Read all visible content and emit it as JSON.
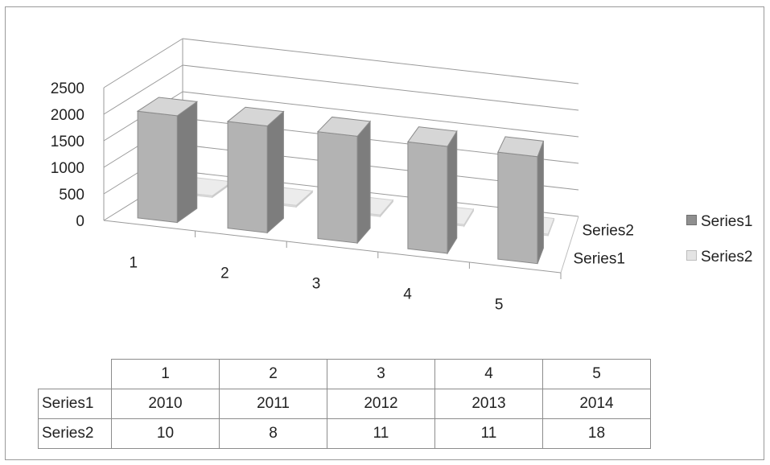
{
  "chart_data": {
    "type": "bar",
    "title": "",
    "categories": [
      "1",
      "2",
      "3",
      "4",
      "5"
    ],
    "series": [
      {
        "name": "Series1",
        "values": [
          2010,
          2011,
          2012,
          2013,
          2014
        ],
        "color": "#b0b0b0"
      },
      {
        "name": "Series2",
        "values": [
          10,
          8,
          11,
          11,
          18
        ],
        "color": "#dcdcdc"
      }
    ],
    "y_ticks": [
      "0",
      "500",
      "1000",
      "1500",
      "2000",
      "2500"
    ],
    "ylim": [
      0,
      2500
    ],
    "depth_axis_labels": [
      "Series1",
      "Series2"
    ],
    "grid": true,
    "legend_position": "right",
    "three_d": true
  },
  "table": {
    "header": [
      "",
      "1",
      "2",
      "3",
      "4",
      "5"
    ],
    "rows": [
      {
        "label": "Series1",
        "values": [
          "2010",
          "2011",
          "2012",
          "2013",
          "2014"
        ]
      },
      {
        "label": "Series2",
        "values": [
          "10",
          "8",
          "11",
          "11",
          "18"
        ]
      }
    ]
  }
}
